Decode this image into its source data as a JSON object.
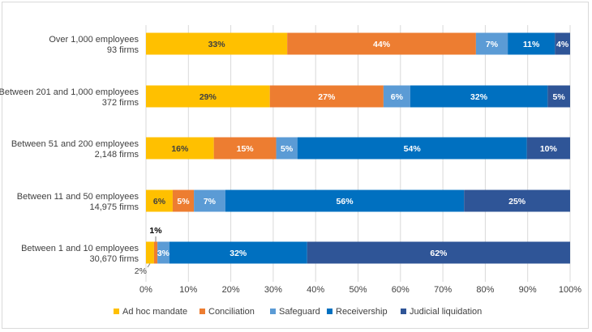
{
  "chart_data": {
    "type": "bar",
    "orientation": "horizontal",
    "stacked": true,
    "title": "",
    "xlabel": "",
    "ylabel": "",
    "xlim": [
      0,
      100
    ],
    "grid": true,
    "legend_position": "bottom",
    "x_ticks": [
      "0%",
      "10%",
      "20%",
      "30%",
      "40%",
      "50%",
      "60%",
      "70%",
      "80%",
      "90%",
      "100%"
    ],
    "categories": [
      {
        "line1": "Over 1,000 employees",
        "line2": "93 firms"
      },
      {
        "line1": "Between 201 and 1,000 employees",
        "line2": "372 firms"
      },
      {
        "line1": "Between 51 and 200 employees",
        "line2": "2,148 firms"
      },
      {
        "line1": "Between 11 and 50 employees",
        "line2": "14,975 firms"
      },
      {
        "line1": "Between 1 and 10 employees",
        "line2": "30,670 firms"
      }
    ],
    "series": [
      {
        "name": "Ad hoc mandate",
        "color": "#FFC000",
        "label_color": "#404040",
        "values": [
          33.3,
          29.2,
          16.0,
          6.3,
          1.9
        ],
        "labels": [
          "33%",
          "29%",
          "16%",
          "6%",
          ""
        ]
      },
      {
        "name": "Conciliation",
        "color": "#ED7D31",
        "label_color": "#ffffff",
        "values": [
          44.5,
          26.8,
          14.7,
          5.0,
          0.8
        ],
        "labels": [
          "44%",
          "27%",
          "15%",
          "5%",
          ""
        ]
      },
      {
        "name": "Safeguard",
        "color": "#5B9BD5",
        "label_color": "#ffffff",
        "values": [
          7.5,
          6.3,
          5.0,
          7.4,
          2.8
        ],
        "labels": [
          "7%",
          "6%",
          "5%",
          "7%",
          "3%"
        ]
      },
      {
        "name": "Receivership",
        "color": "#0070C0",
        "label_color": "#ffffff",
        "values": [
          11.1,
          32.4,
          54.1,
          56.3,
          32.5
        ],
        "labels": [
          "11%",
          "32%",
          "54%",
          "56%",
          "32%"
        ]
      },
      {
        "name": "Judicial liquidation",
        "color": "#2F5597",
        "label_color": "#ffffff",
        "values": [
          3.6,
          5.3,
          10.2,
          25.0,
          62.0
        ],
        "labels": [
          "4%",
          "5%",
          "10%",
          "25%",
          "62%"
        ]
      }
    ],
    "annotations": [
      {
        "text": "1%",
        "category_index": 4,
        "series_index": 1,
        "placement": "above"
      },
      {
        "text": "2%",
        "category_index": 4,
        "series_index": 0,
        "placement": "below-left"
      }
    ]
  }
}
